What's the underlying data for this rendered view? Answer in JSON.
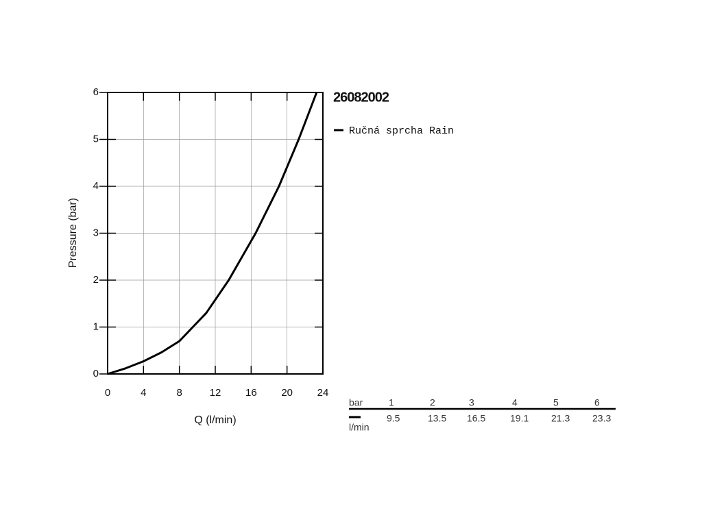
{
  "chart_data": {
    "type": "line",
    "title": "26082002",
    "xlabel": "Q (l/min)",
    "ylabel": "Pressure (bar)",
    "xlim": [
      0,
      24
    ],
    "ylim": [
      0,
      6
    ],
    "xticks": [
      0,
      4,
      8,
      12,
      16,
      20,
      24
    ],
    "yticks": [
      0,
      1,
      2,
      3,
      4,
      5,
      6
    ],
    "grid": true,
    "series": [
      {
        "name": "Ručná sprcha Rain",
        "color": "#000000",
        "x": [
          0,
          2,
          4,
          6,
          8,
          9.5,
          11,
          13.5,
          16.5,
          19.1,
          21.3,
          23.3
        ],
        "values": [
          0,
          0.12,
          0.27,
          0.46,
          0.7,
          1,
          1.3,
          2,
          3,
          4,
          5,
          6
        ]
      }
    ]
  },
  "table": {
    "pressure_label": "bar",
    "flow_label": "l/min",
    "pressures": [
      1,
      2,
      3,
      4,
      5,
      6
    ],
    "flows": [
      9.5,
      13.5,
      16.5,
      19.1,
      21.3,
      23.3
    ]
  }
}
